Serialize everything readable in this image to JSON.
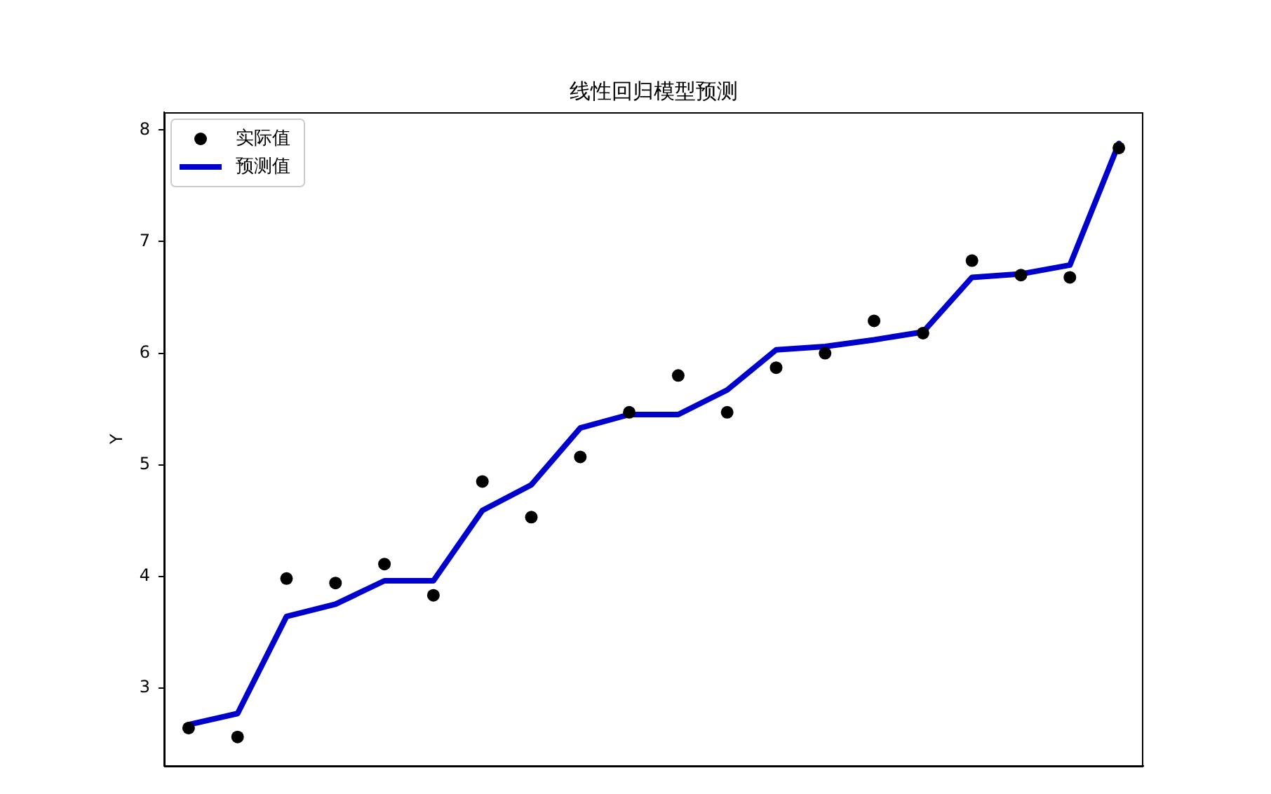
{
  "chart_data": {
    "type": "scatter",
    "title": "线性回归模型预测",
    "ylabel": "Y",
    "categories": [
      null,
      null,
      null,
      null,
      null,
      null,
      null,
      null,
      null,
      null,
      null,
      null,
      null,
      null,
      null,
      null,
      null,
      null,
      null,
      null
    ],
    "ylim": [
      2.3,
      8.16
    ],
    "yticks": [
      3,
      4,
      5,
      6,
      7,
      8
    ],
    "tick_labels": "y",
    "grid": false,
    "legend": "top left",
    "series": [
      {
        "name": "实际值",
        "color": "#000000",
        "marker": "circle",
        "values": [
          2.64,
          2.56,
          3.98,
          3.94,
          4.11,
          3.83,
          4.85,
          4.53,
          5.07,
          5.47,
          5.8,
          5.47,
          5.87,
          6.0,
          6.29,
          6.18,
          6.83,
          6.7,
          6.68,
          7.84
        ]
      },
      {
        "name": "预测值",
        "type": "line",
        "color": "#0000cd",
        "marker": "none",
        "line_style": "solid",
        "values": [
          2.67,
          2.77,
          3.64,
          3.75,
          3.96,
          3.96,
          4.59,
          4.82,
          5.33,
          5.45,
          5.45,
          5.67,
          6.03,
          6.06,
          6.12,
          6.19,
          6.68,
          6.71,
          6.79,
          7.88
        ]
      }
    ]
  }
}
